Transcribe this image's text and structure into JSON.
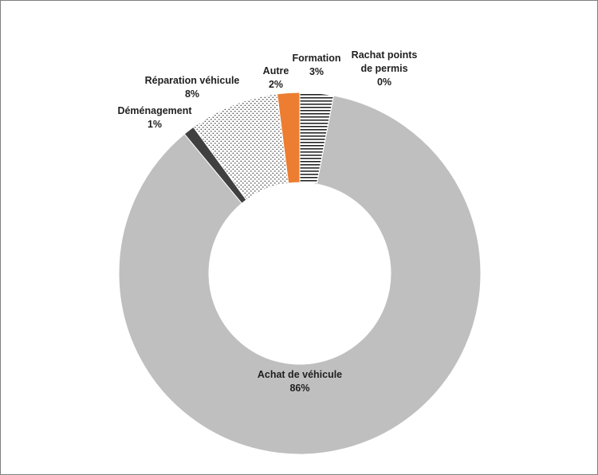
{
  "chart_data": {
    "type": "pie",
    "subtype": "donut",
    "hole_ratio": 0.5,
    "start_angle_deg": 0,
    "direction": "clockwise",
    "legend": "none",
    "title": "",
    "background": "#FFFFFF",
    "slices": [
      {
        "label": "Formation",
        "pct_label": "3%",
        "value": 3,
        "fill": "pattern-horizontal-lines",
        "color": "#1a1a1a"
      },
      {
        "label": "Rachat points de permis",
        "pct_label": "0%",
        "value": 0,
        "fill": "solid",
        "color": "#D9D9D9"
      },
      {
        "label": "Achat de véhicule",
        "pct_label": "86%",
        "value": 86,
        "fill": "solid",
        "color": "#BFBFBF"
      },
      {
        "label": "Déménagement",
        "pct_label": "1%",
        "value": 1,
        "fill": "solid",
        "color": "#404040"
      },
      {
        "label": "Réparation véhicule",
        "pct_label": "8%",
        "value": 8,
        "fill": "pattern-dots",
        "color": "#1a1a1a"
      },
      {
        "label": "Autre",
        "pct_label": "2%",
        "value": 2,
        "fill": "solid",
        "color": "#ED7D31"
      }
    ]
  }
}
